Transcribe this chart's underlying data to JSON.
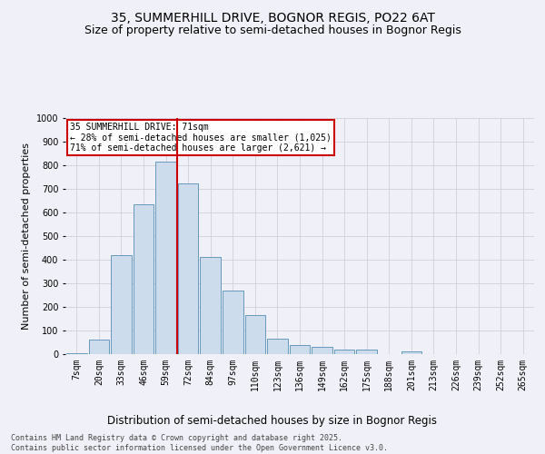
{
  "title_line1": "35, SUMMERHILL DRIVE, BOGNOR REGIS, PO22 6AT",
  "title_line2": "Size of property relative to semi-detached houses in Bognor Regis",
  "xlabel": "Distribution of semi-detached houses by size in Bognor Regis",
  "ylabel": "Number of semi-detached properties",
  "categories": [
    "7sqm",
    "20sqm",
    "33sqm",
    "46sqm",
    "59sqm",
    "72sqm",
    "84sqm",
    "97sqm",
    "110sqm",
    "123sqm",
    "136sqm",
    "149sqm",
    "162sqm",
    "175sqm",
    "188sqm",
    "201sqm",
    "213sqm",
    "226sqm",
    "239sqm",
    "252sqm",
    "265sqm"
  ],
  "values": [
    5,
    60,
    420,
    635,
    815,
    725,
    410,
    270,
    165,
    65,
    40,
    30,
    20,
    18,
    0,
    10,
    0,
    0,
    0,
    0,
    0
  ],
  "bar_color": "#ccdcec",
  "bar_edge_color": "#6699bb",
  "grid_color": "#d0d0d8",
  "bg_color": "#f0f0f8",
  "vline_x_idx": 5,
  "vline_color": "#cc0000",
  "annotation_text": "35 SUMMERHILL DRIVE: 71sqm\n← 28% of semi-detached houses are smaller (1,025)\n71% of semi-detached houses are larger (2,621) →",
  "annotation_box_color": "#cc0000",
  "ylim": [
    0,
    1000
  ],
  "yticks": [
    0,
    100,
    200,
    300,
    400,
    500,
    600,
    700,
    800,
    900,
    1000
  ],
  "footer_line1": "Contains HM Land Registry data © Crown copyright and database right 2025.",
  "footer_line2": "Contains public sector information licensed under the Open Government Licence v3.0.",
  "title_fontsize": 10,
  "subtitle_fontsize": 9,
  "tick_fontsize": 7,
  "ylabel_fontsize": 8,
  "xlabel_fontsize": 8.5,
  "footer_fontsize": 6,
  "annot_fontsize": 7
}
